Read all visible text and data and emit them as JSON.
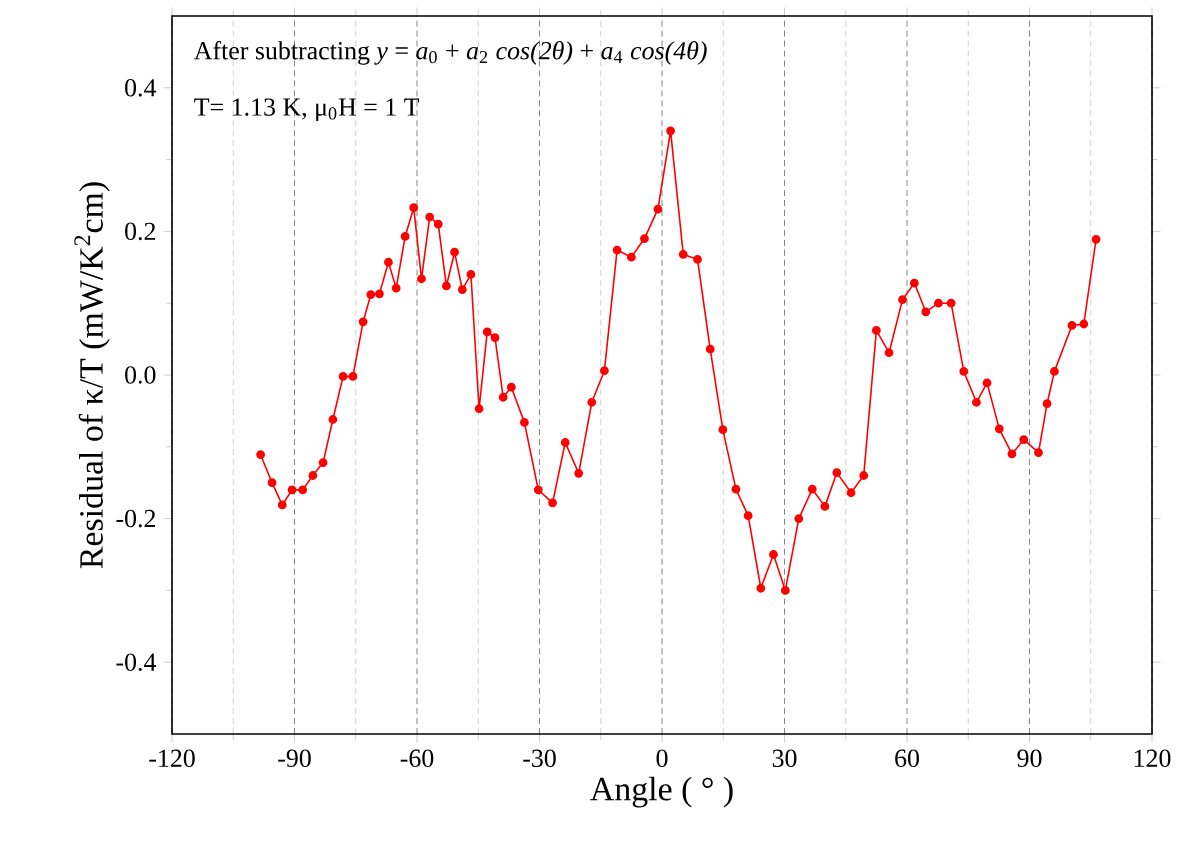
{
  "chart_data": {
    "type": "line",
    "xlabel": "Angle ( ° )",
    "ylabel": "Residual of  κ/T  (mW/K$^{2}$cm)",
    "annotations": [
      "After subtracting  *y* = *a*$_{0}$ + *a*$_{2}$ *cos(2θ)* + *a*$_{4}$ *cos(4θ)*",
      "T= 1.13 K,   μ$_{0}$H = 1 T"
    ],
    "xlim": [
      -120,
      120
    ],
    "xticks": [
      -120,
      -90,
      -60,
      -30,
      0,
      30,
      60,
      90,
      120
    ],
    "ylim": [
      -0.5,
      0.5
    ],
    "yticks": [
      {
        "value": -0.4,
        "label": "-0.4"
      },
      {
        "value": -0.2,
        "label": "-0.2"
      },
      {
        "value": 0,
        "label": "0.0"
      },
      {
        "value": 0.2,
        "label": "0.2"
      },
      {
        "value": 0.4,
        "label": "0.4"
      }
    ],
    "grid": "x",
    "marker": "circle",
    "line_style": "solid",
    "series": [
      {
        "color": "#ff0000",
        "x": [
          -98.3,
          -95.5,
          -93.0,
          -90.6,
          -88.0,
          -85.5,
          -83.0,
          -80.6,
          -78.1,
          -75.7,
          -73.2,
          -71.3,
          -69.2,
          -67.0,
          -65.1,
          -62.9,
          -60.8,
          -58.9,
          -56.9,
          -54.8,
          -52.8,
          -50.8,
          -48.9,
          -46.8,
          -44.8,
          -42.8,
          -40.9,
          -38.9,
          -36.9,
          -33.7,
          -30.3,
          -26.8,
          -23.7,
          -20.4,
          -17.2,
          -14.1,
          -11.0,
          -7.5,
          -4.3,
          -1.0,
          2.1,
          5.2,
          8.7,
          11.8,
          14.9,
          18.1,
          21.1,
          24.2,
          27.3,
          30.2,
          33.5,
          36.8,
          39.9,
          42.8,
          46.3,
          49.4,
          52.5,
          55.6,
          58.9,
          61.8,
          64.6,
          67.7,
          70.8,
          73.9,
          77.0,
          79.6,
          82.6,
          85.7,
          88.6,
          92.2,
          94.3,
          96.1,
          100.4,
          103.3,
          106.3
        ],
        "values": [
          -0.111,
          -0.15,
          -0.181,
          -0.16,
          -0.16,
          -0.14,
          -0.122,
          -0.062,
          -0.002,
          -0.002,
          0.074,
          0.112,
          0.113,
          0.157,
          0.121,
          0.193,
          0.233,
          0.134,
          0.22,
          0.21,
          0.124,
          0.171,
          0.119,
          0.14,
          -0.047,
          0.06,
          0.052,
          -0.031,
          -0.017,
          -0.066,
          -0.16,
          -0.178,
          -0.094,
          -0.137,
          -0.038,
          0.006,
          0.174,
          0.164,
          0.19,
          0.231,
          0.34,
          0.168,
          0.161,
          0.036,
          -0.076,
          -0.159,
          -0.196,
          -0.297,
          -0.25,
          -0.3,
          -0.2,
          -0.159,
          -0.183,
          -0.136,
          -0.164,
          -0.14,
          0.062,
          0.031,
          0.105,
          0.128,
          0.088,
          0.1,
          0.1,
          0.005,
          -0.038,
          -0.011,
          -0.075,
          -0.11,
          -0.09,
          -0.108,
          -0.04,
          0.005,
          0.069,
          0.071,
          0.189
        ]
      }
    ]
  }
}
